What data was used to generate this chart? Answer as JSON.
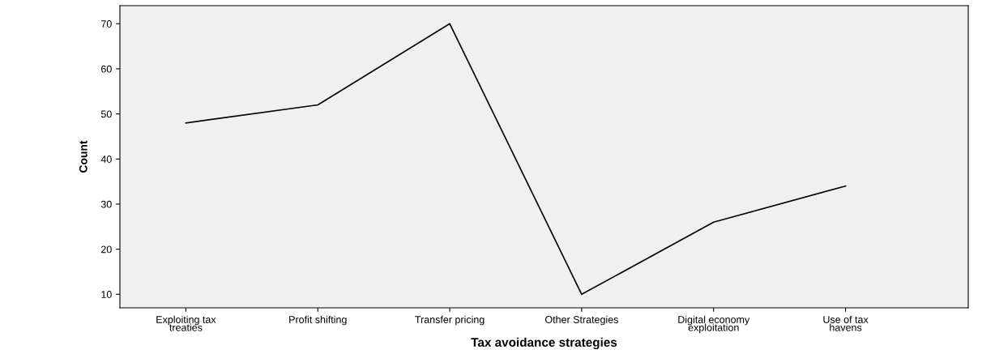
{
  "chart_data": {
    "type": "line",
    "xlabel": "Tax avoidance strategies",
    "ylabel": "Count",
    "categories": [
      "Exploiting tax\ntreaties",
      "Profit shifting",
      "Transfer pricing",
      "Other Strategies",
      "Digital economy\nexploitation",
      "Use of tax\nhavens"
    ],
    "series": [
      {
        "color": "#000000",
        "values": [
          48,
          52,
          70,
          10,
          26,
          34
        ]
      }
    ],
    "ylim": [
      7,
      74
    ],
    "yticks": [
      10,
      20,
      30,
      40,
      50,
      60,
      70
    ],
    "grid": false,
    "legend": false,
    "marker": "none",
    "line_style": "solid"
  }
}
